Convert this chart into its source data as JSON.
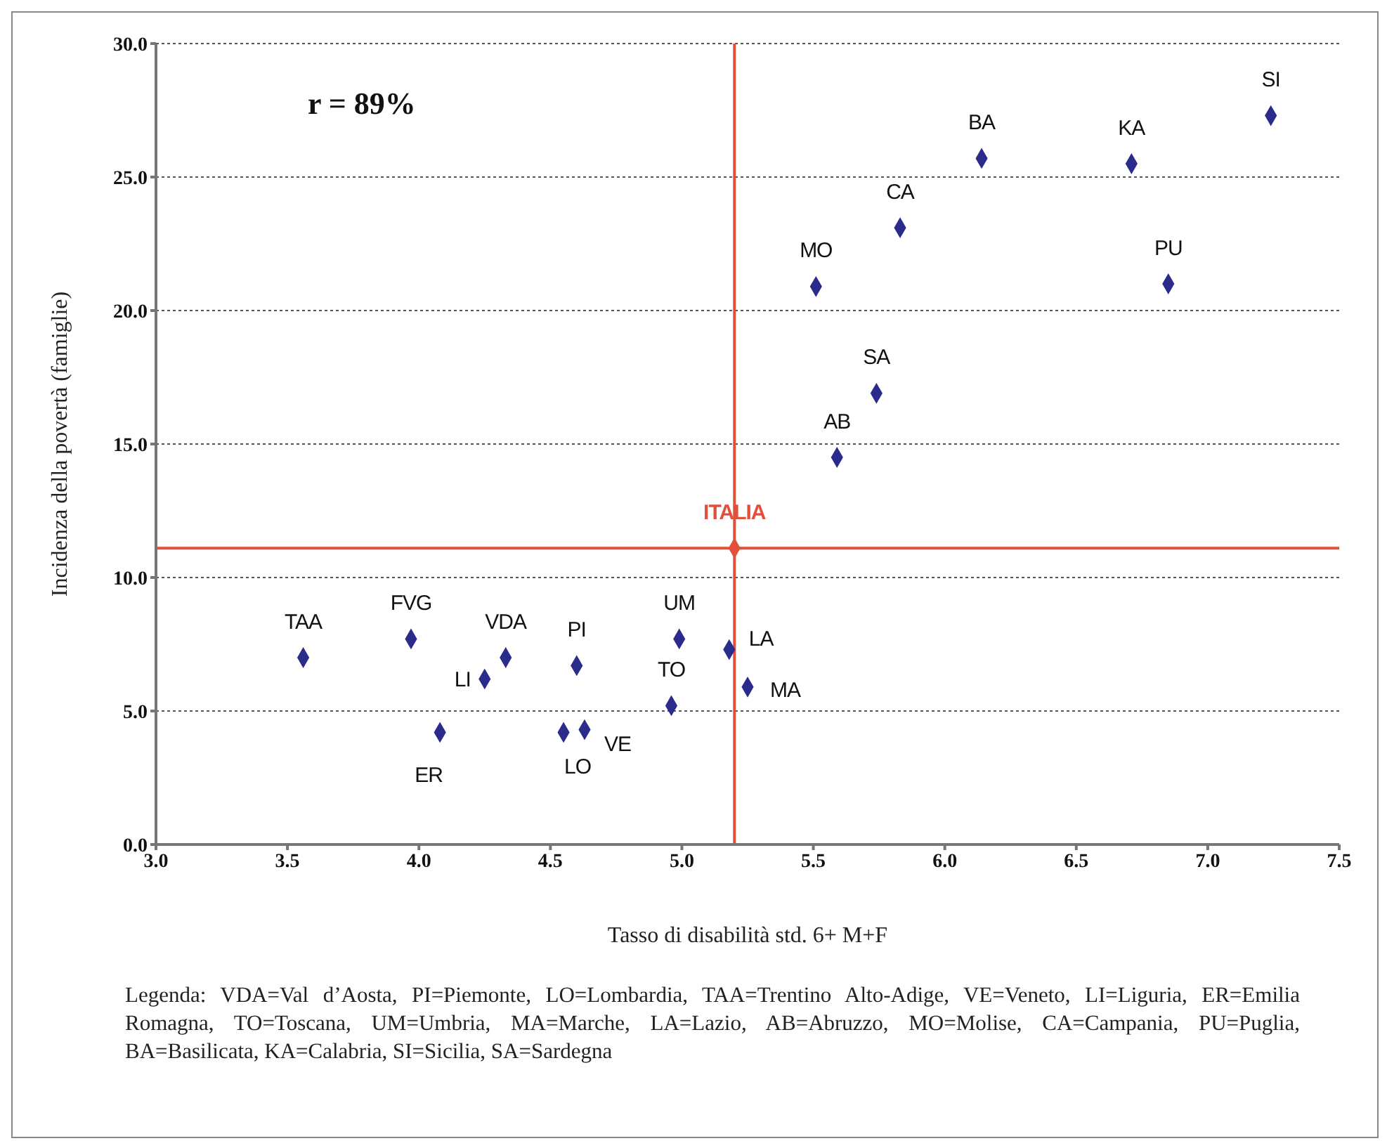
{
  "chart_data": {
    "type": "scatter",
    "xlabel": "Tasso di disabilità std. 6+ M+F",
    "ylabel": "Incidenza della povertà (famiglie)",
    "xlim": [
      3,
      7.5
    ],
    "xticks": [
      {
        "value": 3,
        "label": "3.0"
      },
      {
        "value": 3.5,
        "label": "3.5"
      },
      {
        "value": 4,
        "label": "4.0"
      },
      {
        "value": 4.5,
        "label": "4.5"
      },
      {
        "value": 5,
        "label": "5.0"
      },
      {
        "value": 5.5,
        "label": "5.5"
      },
      {
        "value": 6,
        "label": "6.0"
      },
      {
        "value": 6.5,
        "label": "6.5"
      },
      {
        "value": 7,
        "label": "7.0"
      },
      {
        "value": 7.5,
        "label": "7.5"
      }
    ],
    "ylim": [
      0,
      30
    ],
    "yticks": [
      {
        "value": 0,
        "label": "0.0"
      },
      {
        "value": 5,
        "label": "5.0"
      },
      {
        "value": 10,
        "label": "10.0"
      },
      {
        "value": 15,
        "label": "15.0"
      },
      {
        "value": 20,
        "label": "20.0"
      },
      {
        "value": 25,
        "label": "25.0"
      },
      {
        "value": 30,
        "label": "30.0"
      }
    ],
    "grid": "y",
    "marker": "diamond",
    "series": [
      {
        "color": "#2b2b8c",
        "x": [
          3.56,
          3.97,
          4.08,
          4.25,
          4.33,
          4.6,
          4.55,
          4.63,
          4.96,
          4.99,
          5.18,
          5.25,
          5.59,
          5.74,
          5.51,
          5.83,
          6.14,
          6.71,
          6.85,
          7.24
        ],
        "values": [
          7.0,
          7.7,
          4.2,
          6.2,
          7.0,
          6.7,
          4.2,
          4.3,
          5.2,
          7.7,
          7.3,
          5.9,
          14.5,
          16.9,
          20.9,
          23.1,
          25.7,
          25.5,
          21.0,
          27.3
        ]
      },
      {
        "color": "#e0503a",
        "x": [
          5.2
        ],
        "values": [
          11.1
        ]
      }
    ],
    "ref_lines": [
      {
        "axis": "x",
        "value": 5.2,
        "color": "#e0503a"
      },
      {
        "axis": "y",
        "value": 11.1,
        "color": "#e0503a"
      }
    ],
    "annotations": [
      "r = 89%",
      {
        "text": "TAA",
        "x": 3.56,
        "y": 7.0
      },
      {
        "text": "FVG",
        "x": 3.97,
        "y": 7.7
      },
      {
        "text": "ER",
        "x": 4.08,
        "y": 4.2
      },
      {
        "text": "LI",
        "x": 4.25,
        "y": 6.2
      },
      {
        "text": "VDA",
        "x": 4.33,
        "y": 7.0
      },
      {
        "text": "PI",
        "x": 4.6,
        "y": 6.7
      },
      {
        "text": "LO",
        "x": 4.55,
        "y": 4.2
      },
      {
        "text": "VE",
        "x": 4.63,
        "y": 4.3
      },
      {
        "text": "TO",
        "x": 4.96,
        "y": 5.2
      },
      {
        "text": "UM",
        "x": 4.99,
        "y": 7.7
      },
      {
        "text": "LA",
        "x": 5.18,
        "y": 7.3
      },
      {
        "text": "MA",
        "x": 5.25,
        "y": 5.9
      },
      {
        "text": "AB",
        "x": 5.59,
        "y": 14.5
      },
      {
        "text": "SA",
        "x": 5.74,
        "y": 16.9
      },
      {
        "text": "MO",
        "x": 5.51,
        "y": 20.9
      },
      {
        "text": "CA",
        "x": 5.83,
        "y": 23.1
      },
      {
        "text": "BA",
        "x": 6.14,
        "y": 25.7
      },
      {
        "text": "KA",
        "x": 6.71,
        "y": 25.5
      },
      {
        "text": "PU",
        "x": 6.85,
        "y": 21.0
      },
      {
        "text": "SI",
        "x": 7.24,
        "y": 27.3
      },
      {
        "text": "ITALIA",
        "x": 5.2,
        "y": 11.1
      },
      "Legenda: VDA=Val d’Aosta, PI=Piemonte, LO=Lombardia, TAA=Trentino Alto-Adige, VE=Veneto, LI=Liguria, ER=Emilia Romagna, TO=Toscana, UM=Umbria, MA=Marche, LA=Lazio, AB=Abruzzo, MO=Molise, CA=Campania, PU=Puglia, BA=Basilicata, KA=Calabria, SI=Sicilia, SA=Sardegna"
    ]
  }
}
